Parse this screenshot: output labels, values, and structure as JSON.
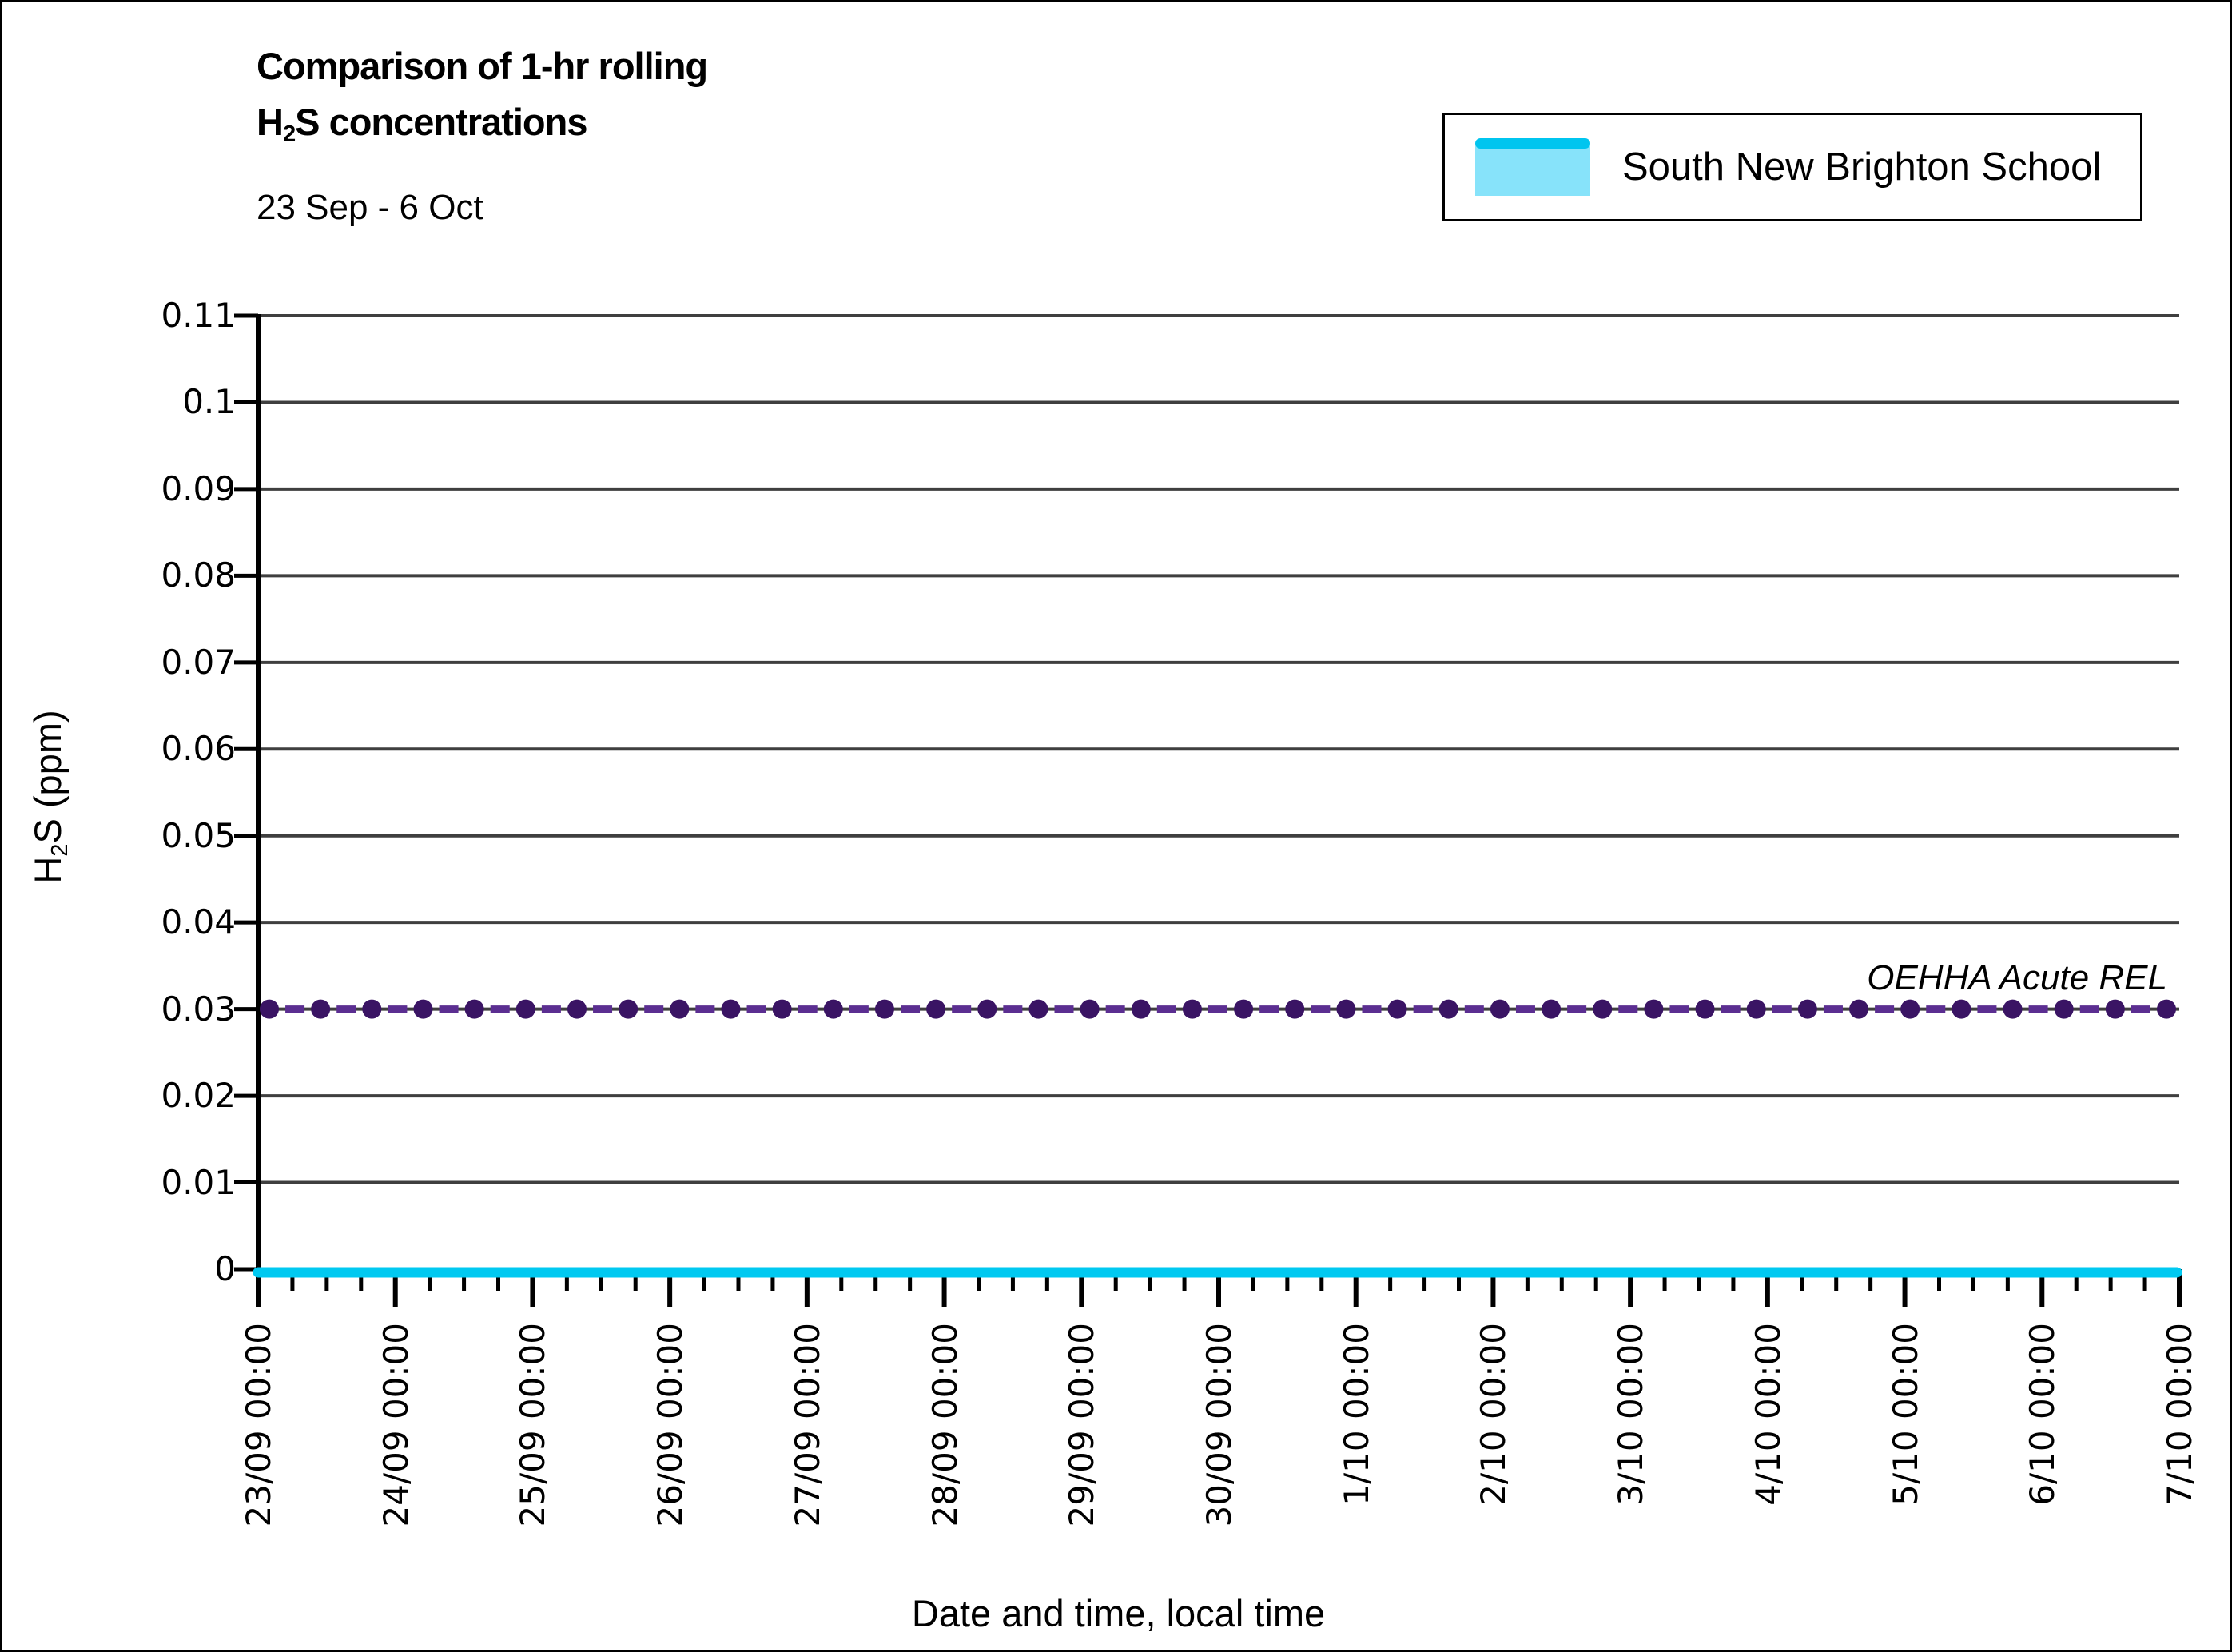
{
  "title": {
    "line1": "Comparison of 1-hr rolling",
    "line2_prefix": "H",
    "line2_sub": "2",
    "line2_suffix": "S concentrations",
    "subtitle": "23 Sep - 6 Oct"
  },
  "legend": {
    "label": "South New Brighton School",
    "fill_color": "#87E3FA",
    "line_color": "#00C5EF"
  },
  "axis": {
    "xlabel": "Date and time, local time",
    "ylabel_prefix": "H",
    "ylabel_sub": "2",
    "ylabel_suffix": "S (ppm)"
  },
  "annotations": {
    "oehha_label": "OEHHA Acute REL"
  },
  "colors": {
    "series_cyan": "#00C9F1",
    "rel_marker": "#3A1464",
    "rel_dash": "#5B2E91",
    "gridline": "#3F3F3F",
    "axis_line": "#000000"
  },
  "chart_data": {
    "type": "line",
    "title": "Comparison of 1-hr rolling H2S concentrations",
    "subtitle": "23 Sep - 6 Oct",
    "xlabel": "Date and time, local time",
    "ylabel": "H2S (ppm)",
    "ylim": [
      0,
      0.11
    ],
    "ytick_labels": [
      "0.11",
      "0.1",
      "0.09",
      "0.08",
      "0.07",
      "0.06",
      "0.05",
      "0.04",
      "0.03",
      "0.02",
      "0.01",
      "0"
    ],
    "ytick_values": [
      0.11,
      0.1,
      0.09,
      0.08,
      0.07,
      0.06,
      0.05,
      0.04,
      0.03,
      0.02,
      0.01,
      0
    ],
    "x_categories": [
      "23/09 00:00",
      "24/09 00:00",
      "25/09 00:00",
      "26/09 00:00",
      "27/09 00:00",
      "28/09 00:00",
      "29/09 00:00",
      "30/09 00:00",
      "1/10 00:00",
      "2/10 00:00",
      "3/10 00:00",
      "4/10 00:00",
      "5/10 00:00",
      "6/10 00:00",
      "7/10 00:00"
    ],
    "x_minor_ticks_per_day": 4,
    "grid": "horizontal",
    "legend_position": "top-right",
    "series": [
      {
        "name": "South New Brighton School",
        "style": "solid-line",
        "color": "#00C9F1",
        "constant_value": 0.0,
        "description": "Flat line at ~0 ppm for the whole period 23/09 00:00 to 7/10 00:00"
      },
      {
        "name": "OEHHA Acute REL",
        "style": "dashed-line-with-round-markers",
        "marker_color": "#3A1464",
        "dash_color": "#5B2E91",
        "constant_value": 0.03,
        "annotation": "OEHHA Acute REL",
        "description": "Horizontal reference line at 0.03 ppm across the whole period"
      }
    ]
  }
}
